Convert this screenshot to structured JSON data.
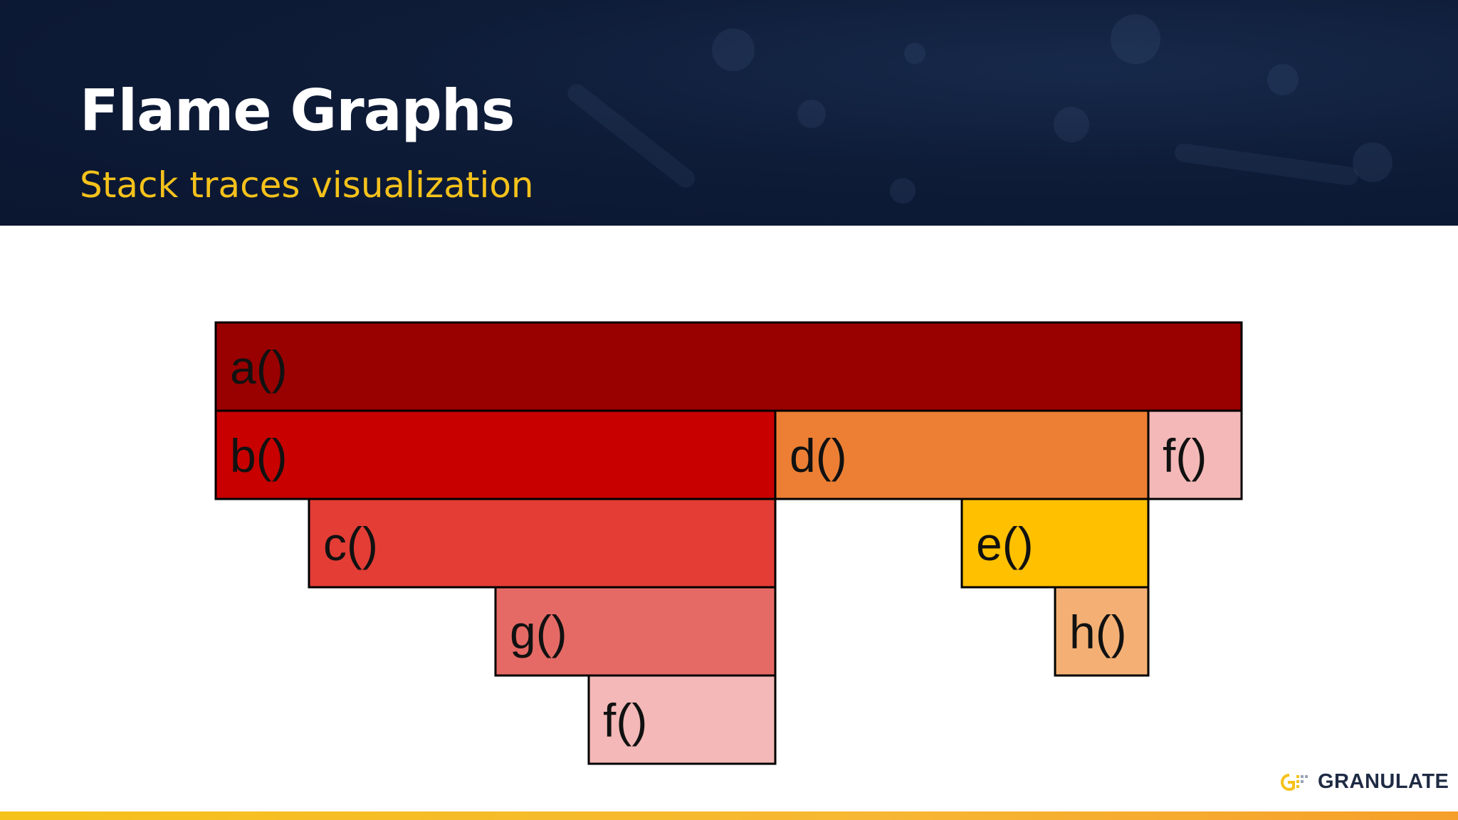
{
  "slide": {
    "title": "Flame Graphs",
    "subtitle": "Stack traces visualization"
  },
  "colors": {
    "header_bg": "#0b1630",
    "title": "#ffffff",
    "subtitle": "#f5c21b",
    "accent_bar": "#f5c21b"
  },
  "flame_graph": {
    "frames": [
      {
        "label": "a()",
        "depth": 0,
        "start": 0,
        "span": 11,
        "color": "#990000"
      },
      {
        "label": "b()",
        "depth": 1,
        "start": 0,
        "span": 6,
        "color": "#c80000"
      },
      {
        "label": "d()",
        "depth": 1,
        "start": 6,
        "span": 4,
        "color": "#ec7f34"
      },
      {
        "label": "f()",
        "depth": 1,
        "start": 10,
        "span": 1,
        "color": "#f3b8b7"
      },
      {
        "label": "c()",
        "depth": 2,
        "start": 1,
        "span": 5,
        "color": "#e33d35"
      },
      {
        "label": "e()",
        "depth": 2,
        "start": 8,
        "span": 2,
        "color": "#ffc000"
      },
      {
        "label": "g()",
        "depth": 3,
        "start": 3,
        "span": 3,
        "color": "#e56a65"
      },
      {
        "label": "h()",
        "depth": 3,
        "start": 9,
        "span": 1,
        "color": "#f4b074"
      },
      {
        "label": "f()",
        "depth": 4,
        "start": 4,
        "span": 2,
        "color": "#f3b8b7"
      }
    ]
  },
  "logo": {
    "text": "GRANULATE",
    "icon": "granulate-logo-icon"
  }
}
